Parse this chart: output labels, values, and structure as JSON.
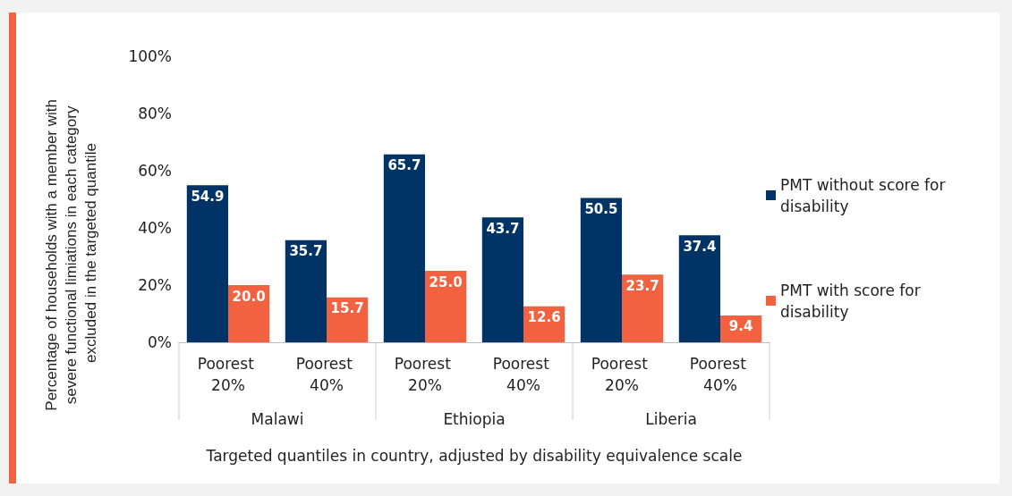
{
  "chart_data": {
    "type": "bar",
    "xlabel": "Targeted quantiles in country, adjusted by disability equivalence scale",
    "ylabel": "Percentage of households with a member with severe functional limiations in each category excluded in the targeted quantile",
    "categories": [
      "Poorest 20%",
      "Poorest 40%",
      "Poorest 20%",
      "Poorest 40%",
      "Poorest 20%",
      "Poorest 40%"
    ],
    "series": [
      {
        "name": "PMT without score for disability",
        "color": "#003366",
        "values": [
          54.9,
          35.7,
          65.7,
          43.7,
          50.5,
          37.4
        ],
        "value_labels": [
          "54.9",
          "35.7",
          "65.7",
          "43.7",
          "50.5",
          "37.4"
        ]
      },
      {
        "name": "PMT with score for disability",
        "color": "#f26140",
        "values": [
          20.0,
          15.7,
          25.0,
          12.6,
          23.7,
          9.4
        ],
        "value_labels": [
          "20.0",
          "15.7",
          "25.0",
          "12.6",
          "23.7",
          "9.4"
        ]
      }
    ],
    "annotations": [
      "Malawi",
      "Ethiopia",
      "Liberia"
    ],
    "ylim": [
      0,
      100
    ],
    "yticks": [
      {
        "value": 0,
        "label": "0%"
      },
      {
        "value": 20,
        "label": "20%"
      },
      {
        "value": 40,
        "label": "40%"
      },
      {
        "value": 60,
        "label": "60%"
      },
      {
        "value": 80,
        "label": "80%"
      },
      {
        "value": 100,
        "label": "100%"
      }
    ],
    "grid": false,
    "legend": "right"
  }
}
